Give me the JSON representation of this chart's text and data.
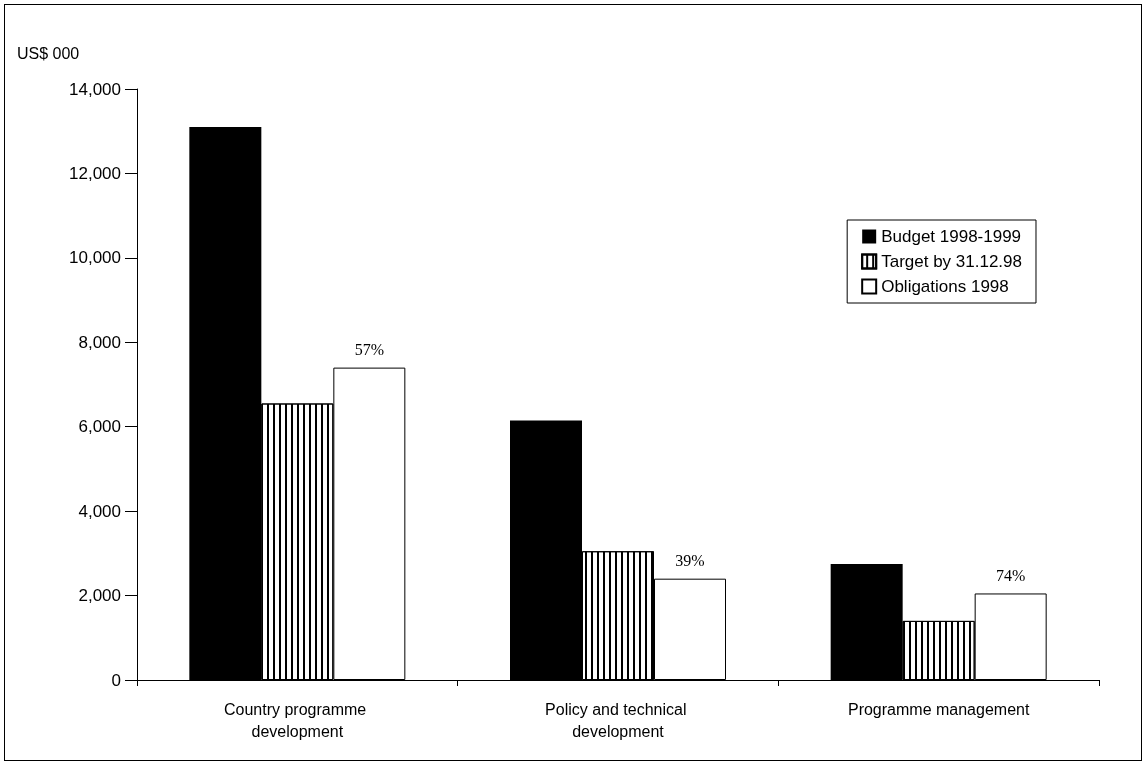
{
  "chart_data": {
    "type": "bar",
    "ylabel": "US$ 000",
    "categories": [
      "Country programme development",
      "Policy and technical development",
      "Programme management"
    ],
    "series": [
      {
        "name": "Budget 1998-1999",
        "color": "#000000",
        "values": [
          13100,
          6150,
          2750
        ]
      },
      {
        "name": "Target by 31.12.98",
        "color": "#ffffff",
        "values": [
          6550,
          3050,
          1400
        ]
      },
      {
        "name": "Obligations 1998",
        "color": "#ffffff",
        "values": [
          7400,
          2400,
          2050
        ]
      }
    ],
    "annotations": [
      "57%",
      "39%",
      "74%"
    ],
    "ylim": [
      0,
      14000
    ],
    "yticks": [
      0,
      {
        "value": 2000,
        "label": "2,000"
      },
      {
        "value": 4000,
        "label": "4,000"
      },
      {
        "value": 6000,
        "label": "6,000"
      },
      {
        "value": 8000,
        "label": "8,000"
      },
      {
        "value": 10000,
        "label": "10,000"
      },
      {
        "value": 12000,
        "label": "12,000"
      },
      {
        "value": 14000,
        "label": "14,000"
      }
    ],
    "grid": false,
    "legend": "right"
  }
}
